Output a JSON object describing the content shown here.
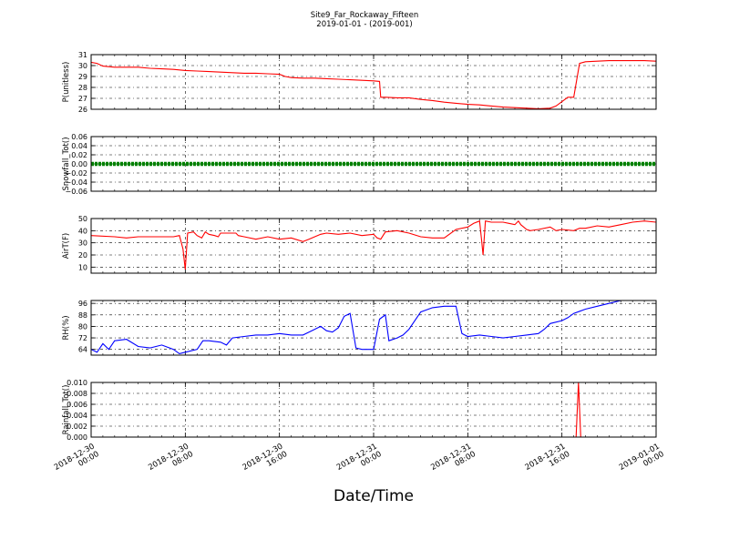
{
  "title_line1": "Site9_Far_Rockaway_Fifteen",
  "title_line2": "2019-01-01 - (2019-001)",
  "xaxis_label": "Date/Time",
  "chart_data": [
    {
      "type": "line",
      "ylabel": "P(unitless)",
      "ylim": [
        26,
        31
      ],
      "yticks": [
        26,
        27,
        28,
        29,
        30,
        31
      ],
      "yticklabels": [
        "26",
        "27",
        "28",
        "29",
        "30",
        "31"
      ],
      "grid": true,
      "series": [
        {
          "color": "#ff0000",
          "points": [
            [
              0,
              30.3
            ],
            [
              0.5,
              30.2
            ],
            [
              1,
              29.95
            ],
            [
              2,
              29.85
            ],
            [
              3,
              29.85
            ],
            [
              4,
              29.85
            ],
            [
              5,
              29.75
            ],
            [
              6,
              29.7
            ],
            [
              7,
              29.65
            ],
            [
              8,
              29.55
            ],
            [
              9,
              29.5
            ],
            [
              10,
              29.45
            ],
            [
              11,
              29.4
            ],
            [
              12,
              29.35
            ],
            [
              13,
              29.3
            ],
            [
              14,
              29.3
            ],
            [
              15,
              29.25
            ],
            [
              16,
              29.2
            ],
            [
              16.5,
              29.0
            ],
            [
              17,
              28.9
            ],
            [
              18,
              28.85
            ],
            [
              19,
              28.85
            ],
            [
              20,
              28.8
            ],
            [
              21,
              28.75
            ],
            [
              22,
              28.7
            ],
            [
              23,
              28.65
            ],
            [
              24,
              28.6
            ],
            [
              24.5,
              28.55
            ],
            [
              24.6,
              27.1
            ],
            [
              25,
              27.1
            ],
            [
              26,
              27.05
            ],
            [
              27,
              27.05
            ],
            [
              28,
              26.9
            ],
            [
              29,
              26.8
            ],
            [
              30,
              26.65
            ],
            [
              31,
              26.55
            ],
            [
              32,
              26.45
            ],
            [
              33,
              26.4
            ],
            [
              34,
              26.3
            ],
            [
              35,
              26.2
            ],
            [
              36,
              26.15
            ],
            [
              37,
              26.1
            ],
            [
              38,
              26.05
            ],
            [
              39,
              26.1
            ],
            [
              39.5,
              26.3
            ],
            [
              40,
              26.7
            ],
            [
              40.5,
              27.1
            ],
            [
              41,
              27.1
            ],
            [
              41.5,
              30.2
            ],
            [
              42,
              30.35
            ],
            [
              43,
              30.4
            ],
            [
              44,
              30.45
            ],
            [
              45,
              30.45
            ],
            [
              46,
              30.45
            ],
            [
              47,
              30.45
            ],
            [
              48,
              30.4
            ]
          ]
        }
      ]
    },
    {
      "type": "line",
      "ylabel": "Snowfall_Tot()",
      "ylim": [
        -0.06,
        0.06
      ],
      "yticks": [
        -0.06,
        -0.04,
        -0.02,
        0.0,
        0.02,
        0.04,
        0.06
      ],
      "yticklabels": [
        "−0.06",
        "−0.04",
        "−0.02",
        "0.00",
        "0.02",
        "0.04",
        "0.06"
      ],
      "grid": true,
      "series": [
        {
          "color": "#008000",
          "markers": true,
          "points": [
            [
              0,
              0
            ],
            [
              48,
              0
            ]
          ]
        }
      ]
    },
    {
      "type": "line",
      "ylabel": "AirT(F)",
      "ylim": [
        5,
        50
      ],
      "yticks": [
        10,
        20,
        30,
        40,
        50
      ],
      "yticklabels": [
        "10",
        "20",
        "30",
        "40",
        "50"
      ],
      "grid": true,
      "series": [
        {
          "color": "#ff0000",
          "points": [
            [
              0,
              36
            ],
            [
              2,
              35
            ],
            [
              3,
              34
            ],
            [
              4,
              35
            ],
            [
              6,
              35
            ],
            [
              7,
              35
            ],
            [
              7.5,
              36
            ],
            [
              7.8,
              25
            ],
            [
              8,
              8
            ],
            [
              8.2,
              38
            ],
            [
              8.7,
              39
            ],
            [
              9,
              36
            ],
            [
              9.4,
              34
            ],
            [
              9.7,
              39
            ],
            [
              10,
              37
            ],
            [
              10.5,
              36
            ],
            [
              10.8,
              35
            ],
            [
              11,
              38
            ],
            [
              12,
              38
            ],
            [
              12.3,
              38
            ],
            [
              12.5,
              36
            ],
            [
              13,
              35
            ],
            [
              14,
              33
            ],
            [
              15,
              35
            ],
            [
              16,
              33
            ],
            [
              17,
              34
            ],
            [
              18,
              31
            ],
            [
              18.5,
              33
            ],
            [
              19,
              35
            ],
            [
              19.5,
              37
            ],
            [
              20,
              38
            ],
            [
              21,
              37
            ],
            [
              22,
              38
            ],
            [
              23,
              36
            ],
            [
              24,
              37
            ],
            [
              24.3,
              34
            ],
            [
              24.6,
              33
            ],
            [
              25,
              39
            ],
            [
              26,
              40
            ],
            [
              27,
              38
            ],
            [
              28,
              35
            ],
            [
              29,
              34
            ],
            [
              30,
              34
            ],
            [
              31,
              41
            ],
            [
              32,
              43
            ],
            [
              32.5,
              46
            ],
            [
              33,
              48
            ],
            [
              33.2,
              30
            ],
            [
              33.3,
              20
            ],
            [
              33.5,
              48
            ],
            [
              34,
              47
            ],
            [
              35,
              47
            ],
            [
              35.5,
              46
            ],
            [
              36,
              45
            ],
            [
              36.3,
              48
            ],
            [
              36.5,
              45
            ],
            [
              37,
              41
            ],
            [
              37.3,
              40
            ],
            [
              38,
              41
            ],
            [
              39,
              43
            ],
            [
              39.5,
              40
            ],
            [
              40,
              41
            ],
            [
              41,
              40
            ],
            [
              41.5,
              42
            ],
            [
              42,
              42
            ],
            [
              43,
              44
            ],
            [
              44,
              43
            ],
            [
              45,
              45
            ],
            [
              46,
              47
            ],
            [
              47,
              48
            ],
            [
              48,
              47
            ]
          ]
        }
      ]
    },
    {
      "type": "line",
      "ylabel": "RH(%)",
      "ylim": [
        60,
        98
      ],
      "yticks": [
        64,
        72,
        80,
        88,
        96
      ],
      "yticklabels": [
        "64",
        "72",
        "80",
        "88",
        "96"
      ],
      "grid": true,
      "series": [
        {
          "color": "#0000ff",
          "points": [
            [
              0,
              64
            ],
            [
              0.5,
              62
            ],
            [
              1,
              68
            ],
            [
              1.5,
              64
            ],
            [
              2,
              70
            ],
            [
              3,
              71
            ],
            [
              4,
              66
            ],
            [
              5,
              65
            ],
            [
              6,
              67
            ],
            [
              7,
              64
            ],
            [
              7.5,
              61
            ],
            [
              8,
              62
            ],
            [
              9,
              64
            ],
            [
              9.5,
              70
            ],
            [
              10,
              70
            ],
            [
              11,
              69
            ],
            [
              11.5,
              67
            ],
            [
              12,
              72
            ],
            [
              13,
              73
            ],
            [
              14,
              74
            ],
            [
              15,
              74
            ],
            [
              16,
              75
            ],
            [
              17,
              74
            ],
            [
              18,
              74
            ],
            [
              18.5,
              76
            ],
            [
              19,
              78
            ],
            [
              19.5,
              80
            ],
            [
              20,
              77
            ],
            [
              20.5,
              76
            ],
            [
              21,
              79
            ],
            [
              21.5,
              87
            ],
            [
              22,
              89
            ],
            [
              22.5,
              65
            ],
            [
              23,
              64
            ],
            [
              24,
              64
            ],
            [
              24.5,
              85
            ],
            [
              25,
              88
            ],
            [
              25.3,
              70
            ],
            [
              26,
              72
            ],
            [
              26.5,
              74
            ],
            [
              27,
              78
            ],
            [
              28,
              90
            ],
            [
              29,
              93
            ],
            [
              30,
              94
            ],
            [
              31,
              94
            ],
            [
              31.5,
              75
            ],
            [
              32,
              73
            ],
            [
              33,
              74
            ],
            [
              34,
              73
            ],
            [
              35,
              72
            ],
            [
              36,
              73
            ],
            [
              37,
              74
            ],
            [
              38,
              75
            ],
            [
              38.5,
              78
            ],
            [
              39,
              82
            ],
            [
              40,
              84
            ],
            [
              40.5,
              86
            ],
            [
              41,
              89
            ],
            [
              42,
              92
            ],
            [
              43,
              94
            ],
            [
              44,
              96
            ],
            [
              45,
              98
            ],
            [
              48,
              98
            ]
          ]
        }
      ]
    },
    {
      "type": "line",
      "ylabel": "Rainfall_Tot()",
      "ylim": [
        0,
        0.01
      ],
      "yticks": [
        0.0,
        0.002,
        0.004,
        0.006,
        0.008,
        0.01
      ],
      "yticklabels": [
        "0.000",
        "0.002",
        "0.004",
        "0.006",
        "0.008",
        "0.010"
      ],
      "grid": true,
      "series": [
        {
          "color": "#ff0000",
          "points": [
            [
              0,
              0
            ],
            [
              41.2,
              0
            ],
            [
              41.4,
              0.01
            ],
            [
              41.6,
              0
            ],
            [
              48,
              0
            ]
          ]
        }
      ]
    }
  ],
  "xaxis": {
    "range": [
      0,
      48
    ],
    "ticks": [
      0,
      8,
      16,
      24,
      32,
      40,
      48
    ],
    "ticklabels": [
      [
        "2018-12-30",
        "00:00"
      ],
      [
        "2018-12-30",
        "08:00"
      ],
      [
        "2018-12-30",
        "16:00"
      ],
      [
        "2018-12-31",
        "00:00"
      ],
      [
        "2018-12-31",
        "08:00"
      ],
      [
        "2018-12-31",
        "16:00"
      ],
      [
        "2019-01-01",
        "00:00"
      ]
    ]
  }
}
